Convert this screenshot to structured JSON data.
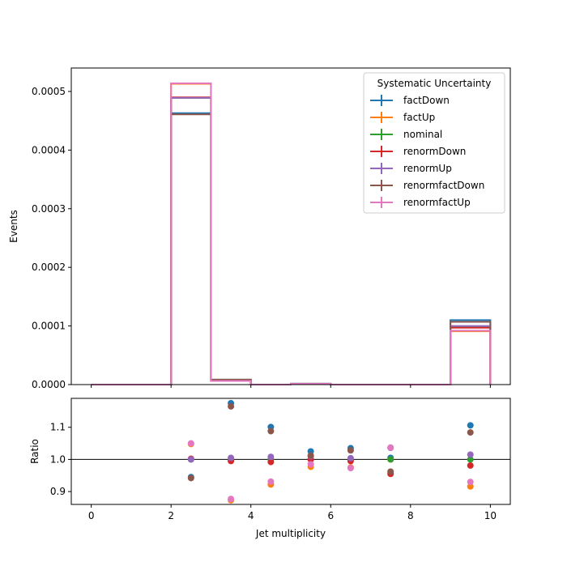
{
  "chart_data": [
    {
      "type": "line",
      "drawstyle": "steps",
      "ylabel": "Events",
      "xlim": [
        -0.5,
        10.5
      ],
      "ylim": [
        0,
        0.00054
      ],
      "yticks": [
        "0.0000",
        "0.0001",
        "0.0002",
        "0.0003",
        "0.0004",
        "0.0005"
      ],
      "ytick_values": [
        0,
        0.0001,
        0.0002,
        0.0003,
        0.0004,
        0.0005
      ],
      "bin_edges": [
        0,
        1,
        2,
        3,
        4,
        5,
        6,
        7,
        8,
        9,
        10
      ],
      "legend": {
        "title": "Systematic Uncertainty",
        "placement": "top-right"
      },
      "series": [
        {
          "name": "factDown",
          "color": "#1f77b4",
          "values": [
            0,
            0,
            0.000463,
            8.5e-06,
            0,
            1.5e-06,
            0,
            0,
            0,
            0.00011
          ]
        },
        {
          "name": "factUp",
          "color": "#ff7f0e",
          "values": [
            0,
            0,
            0.000513,
            6.3e-06,
            0,
            1.4e-06,
            0,
            0,
            0,
            9.1e-05
          ]
        },
        {
          "name": "nominal",
          "color": "#2ca02c",
          "values": [
            0,
            0,
            0.000489,
            7.2e-06,
            0,
            1.4e-06,
            0,
            0,
            0,
            9.9e-05
          ]
        },
        {
          "name": "renormDown",
          "color": "#d62728",
          "values": [
            0,
            0,
            0.00049,
            7.1e-06,
            0,
            1.4e-06,
            0,
            0,
            0,
            9.7e-05
          ]
        },
        {
          "name": "renormUp",
          "color": "#9467bd",
          "values": [
            0,
            0,
            0.000489,
            7.2e-06,
            0,
            1.4e-06,
            0,
            0,
            0,
            0.0001
          ]
        },
        {
          "name": "renormfactDown",
          "color": "#8c564b",
          "values": [
            0,
            0,
            0.000461,
            8.4e-06,
            0,
            1.5e-06,
            0,
            0,
            0,
            0.000107
          ]
        },
        {
          "name": "renormfactUp",
          "color": "#e377c2",
          "values": [
            0,
            0,
            0.000514,
            6.3e-06,
            0,
            1.4e-06,
            0,
            0,
            0,
            9.2e-05
          ]
        }
      ]
    },
    {
      "type": "scatter",
      "xlabel": "Jet multiplicity",
      "ylabel": "Ratio",
      "xlim": [
        -0.5,
        10.5
      ],
      "ylim": [
        0.86,
        1.19
      ],
      "xticks": [
        "0",
        "2",
        "4",
        "6",
        "8",
        "10"
      ],
      "xtick_values": [
        0,
        2,
        4,
        6,
        8,
        10
      ],
      "yticks": [
        "0.9",
        "1.0",
        "1.1"
      ],
      "ytick_values": [
        0.9,
        1.0,
        1.1
      ],
      "reference_line": 1.0,
      "x": [
        2.5,
        3.5,
        4.5,
        5.5,
        6.5,
        7.5,
        9.5
      ],
      "series": [
        {
          "name": "factDown",
          "color": "#1f77b4",
          "values": [
            0.945,
            1.175,
            1.101,
            1.025,
            1.035,
            1.005,
            1.106
          ]
        },
        {
          "name": "factUp",
          "color": "#ff7f0e",
          "values": [
            1.048,
            0.873,
            0.922,
            0.977,
            0.975,
            1.0,
            0.916
          ]
        },
        {
          "name": "nominal",
          "color": "#2ca02c",
          "values": [
            1.0,
            1.0,
            1.0,
            1.0,
            1.0,
            1.0,
            1.0
          ]
        },
        {
          "name": "renormDown",
          "color": "#d62728",
          "values": [
            1.002,
            0.995,
            0.992,
            1.0,
            0.995,
            0.955,
            0.981
          ]
        },
        {
          "name": "renormUp",
          "color": "#9467bd",
          "values": [
            1.0,
            1.005,
            1.008,
            1.01,
            1.004,
            1.036,
            1.015
          ]
        },
        {
          "name": "renormfactDown",
          "color": "#8c564b",
          "values": [
            0.942,
            1.165,
            1.088,
            1.012,
            1.028,
            0.962,
            1.084
          ]
        },
        {
          "name": "renormfactUp",
          "color": "#e377c2",
          "values": [
            1.05,
            0.877,
            0.931,
            0.985,
            0.973,
            1.037,
            0.93
          ]
        }
      ]
    }
  ]
}
